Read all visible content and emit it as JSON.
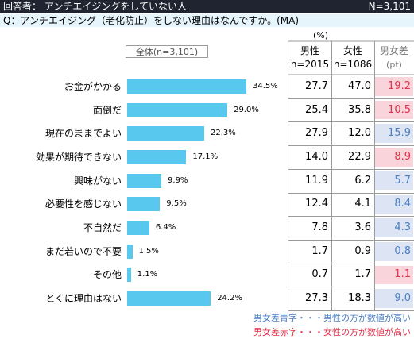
{
  "header": {
    "respondents": "回答者： アンチエイジングをしていない人",
    "sample_size": "N=3,101"
  },
  "question": "Q：アンチエイジング（老化防止）をしない理由はなんですか。(MA)",
  "total_label": "全体(n=3,101)",
  "table": {
    "unit": "(%)",
    "male_header": "男性",
    "male_n": "n=2015",
    "female_header": "女性",
    "female_n": "n=1086",
    "diff_header": "男女差",
    "diff_unit": "(pt)"
  },
  "legend": {
    "blue_note": "男女差青字・・・男性の方が数値が高い",
    "red_note": "男女差赤字・・・女性の方が数値が高い"
  },
  "colors": {
    "bar": "#59c8ee",
    "male_higher_text": "#4a7fc6",
    "male_higher_bg": "#dde5f5",
    "female_higher_text": "#e0304a",
    "female_higher_bg": "#f9d4da",
    "grid": "#9b9b9b"
  },
  "chart_data": {
    "type": "bar",
    "orientation": "horizontal",
    "xlim": [
      0,
      40
    ],
    "categories": [
      "お金がかかる",
      "面倒だ",
      "現在のままでよい",
      "効果が期待できない",
      "興味がない",
      "必要性を感じない",
      "不自然だ",
      "まだ若いので不要",
      "その他",
      "とくに理由はない"
    ],
    "series": [
      {
        "values": [
          34.5,
          29.0,
          22.3,
          17.1,
          9.9,
          9.5,
          6.4,
          1.5,
          1.1,
          24.2
        ],
        "labels": [
          "34.5%",
          "29.0%",
          "22.3%",
          "17.1%",
          "9.9%",
          "9.5%",
          "6.4%",
          "1.5%",
          "1.1%",
          "24.2%"
        ]
      }
    ],
    "table_values": {
      "male": [
        "27.7",
        "25.4",
        "27.9",
        "14.0",
        "11.9",
        "12.4",
        "7.8",
        "1.7",
        "0.7",
        "27.3"
      ],
      "female": [
        "47.0",
        "35.8",
        "12.0",
        "22.9",
        "6.2",
        "4.1",
        "3.6",
        "0.9",
        "1.7",
        "18.3"
      ],
      "diff": [
        "19.2",
        "10.5",
        "15.9",
        "8.9",
        "5.7",
        "8.4",
        "4.3",
        "0.8",
        "1.1",
        "9.0"
      ],
      "diff_higher": [
        "female",
        "female",
        "male",
        "female",
        "male",
        "male",
        "male",
        "male",
        "female",
        "male"
      ]
    }
  }
}
